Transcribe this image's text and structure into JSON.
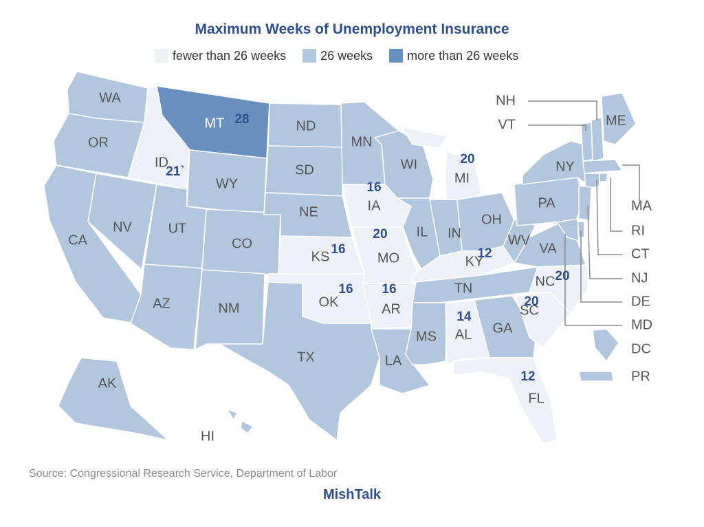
{
  "title": "Maximum Weeks of Unemployment Insurance",
  "legend": [
    {
      "label": "fewer than 26 weeks",
      "color": "#eef1f7"
    },
    {
      "label": "26 weeks",
      "color": "#b2c7de"
    },
    {
      "label": "more than 26 weeks",
      "color": "#6a90bf"
    }
  ],
  "colors": {
    "border": "#ffffff",
    "leader_line": "#888888"
  },
  "states": [
    {
      "abbr": "WA",
      "category": "26 weeks"
    },
    {
      "abbr": "OR",
      "category": "26 weeks"
    },
    {
      "abbr": "CA",
      "category": "26 weeks"
    },
    {
      "abbr": "ID",
      "category": "fewer than 26 weeks",
      "weeks": "21`"
    },
    {
      "abbr": "NV",
      "category": "26 weeks"
    },
    {
      "abbr": "MT",
      "category": "more than 26 weeks",
      "weeks": "28"
    },
    {
      "abbr": "WY",
      "category": "26 weeks"
    },
    {
      "abbr": "UT",
      "category": "26 weeks"
    },
    {
      "abbr": "AZ",
      "category": "26 weeks"
    },
    {
      "abbr": "CO",
      "category": "26 weeks"
    },
    {
      "abbr": "NM",
      "category": "26 weeks"
    },
    {
      "abbr": "ND",
      "category": "26 weeks"
    },
    {
      "abbr": "SD",
      "category": "26 weeks"
    },
    {
      "abbr": "NE",
      "category": "26 weeks"
    },
    {
      "abbr": "KS",
      "category": "fewer than 26 weeks",
      "weeks": "16"
    },
    {
      "abbr": "OK",
      "category": "fewer than 26 weeks",
      "weeks": "16"
    },
    {
      "abbr": "TX",
      "category": "26 weeks"
    },
    {
      "abbr": "MN",
      "category": "26 weeks"
    },
    {
      "abbr": "IA",
      "category": "fewer than 26 weeks",
      "weeks": "16"
    },
    {
      "abbr": "MO",
      "category": "fewer than 26 weeks",
      "weeks": "20"
    },
    {
      "abbr": "AR",
      "category": "fewer than 26 weeks",
      "weeks": "16"
    },
    {
      "abbr": "LA",
      "category": "26 weeks"
    },
    {
      "abbr": "WI",
      "category": "26 weeks"
    },
    {
      "abbr": "IL",
      "category": "26 weeks"
    },
    {
      "abbr": "MI",
      "category": "fewer than 26 weeks",
      "weeks": "20"
    },
    {
      "abbr": "IN",
      "category": "26 weeks"
    },
    {
      "abbr": "OH",
      "category": "26 weeks"
    },
    {
      "abbr": "KY",
      "category": "fewer than 26 weeks",
      "weeks": "12"
    },
    {
      "abbr": "TN",
      "category": "26 weeks"
    },
    {
      "abbr": "MS",
      "category": "26 weeks"
    },
    {
      "abbr": "AL",
      "category": "fewer than 26 weeks",
      "weeks": "14"
    },
    {
      "abbr": "GA",
      "category": "26 weeks"
    },
    {
      "abbr": "FL",
      "category": "fewer than 26 weeks",
      "weeks": "12"
    },
    {
      "abbr": "SC",
      "category": "fewer than 26 weeks",
      "weeks": "20"
    },
    {
      "abbr": "NC",
      "category": "fewer than 26 weeks",
      "weeks": "20"
    },
    {
      "abbr": "VA",
      "category": "26 weeks"
    },
    {
      "abbr": "WV",
      "category": "26 weeks"
    },
    {
      "abbr": "PA",
      "category": "26 weeks"
    },
    {
      "abbr": "NY",
      "category": "26 weeks"
    },
    {
      "abbr": "ME",
      "category": "26 weeks"
    },
    {
      "abbr": "AK",
      "category": "26 weeks"
    },
    {
      "abbr": "HI",
      "category": "26 weeks"
    },
    {
      "abbr": "NH",
      "category": "26 weeks"
    },
    {
      "abbr": "VT",
      "category": "26 weeks"
    },
    {
      "abbr": "MA",
      "category": "26 weeks"
    },
    {
      "abbr": "RI",
      "category": "26 weeks"
    },
    {
      "abbr": "CT",
      "category": "26 weeks"
    },
    {
      "abbr": "NJ",
      "category": "26 weeks"
    },
    {
      "abbr": "DE",
      "category": "26 weeks"
    },
    {
      "abbr": "MD",
      "category": "26 weeks"
    },
    {
      "abbr": "DC",
      "category": "26 weeks"
    },
    {
      "abbr": "PR",
      "category": "26 weeks"
    }
  ],
  "source": "Source: Congressional Research Service, Department of Labor",
  "brand": "MishTalk"
}
